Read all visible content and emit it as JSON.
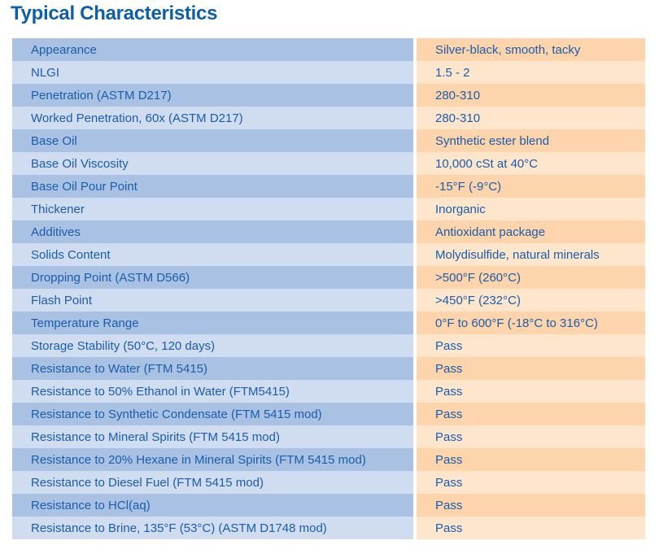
{
  "page": {
    "title": "Typical Characteristics"
  },
  "colors": {
    "title_text": "#0d5ead",
    "cell_text": "#1a5dab",
    "property_row_dark": "#a9c2e3",
    "property_row_light": "#d0dcef",
    "value_row_dark": "#fdd4ab",
    "value_row_light": "#fee6cd",
    "background": "#ffffff"
  },
  "table": {
    "rows": [
      {
        "property": "Appearance",
        "value": "Silver-black, smooth, tacky"
      },
      {
        "property": "NLGI",
        "value": "1.5 - 2"
      },
      {
        "property": "Penetration (ASTM D217)",
        "value": "280-310"
      },
      {
        "property": "Worked Penetration, 60x (ASTM D217)",
        "value": "280-310"
      },
      {
        "property": "Base Oil",
        "value": "Synthetic ester blend"
      },
      {
        "property": "Base Oil Viscosity",
        "value": "10,000 cSt at 40°C"
      },
      {
        "property": "Base Oil Pour Point",
        "value": "-15°F (-9°C)"
      },
      {
        "property": "Thickener",
        "value": "Inorganic"
      },
      {
        "property": "Additives",
        "value": "Antioxidant package"
      },
      {
        "property": "Solids Content",
        "value": "Molydisulfide, natural minerals"
      },
      {
        "property": "Dropping Point (ASTM D566)",
        "value": ">500°F (260°C)"
      },
      {
        "property": "Flash Point",
        "value": ">450°F (232°C)"
      },
      {
        "property": "Temperature Range",
        "value": "0°F to 600°F (-18°C to 316°C)"
      },
      {
        "property": "Storage Stability (50°C, 120 days)",
        "value": "Pass"
      },
      {
        "property": "Resistance to Water (FTM 5415)",
        "value": "Pass"
      },
      {
        "property": "Resistance to 50% Ethanol in Water (FTM5415)",
        "value": "Pass"
      },
      {
        "property": "Resistance to Synthetic Condensate (FTM 5415 mod)",
        "value": "Pass"
      },
      {
        "property": "Resistance to Mineral Spirits (FTM 5415 mod)",
        "value": "Pass"
      },
      {
        "property": "Resistance to 20% Hexane in Mineral Spirits (FTM 5415 mod)",
        "value": "Pass"
      },
      {
        "property": "Resistance to Diesel Fuel (FTM 5415 mod)",
        "value": "Pass"
      },
      {
        "property": "Resistance to HCl(aq)",
        "value": "Pass"
      },
      {
        "property": "Resistance to Brine, 135°F (53°C) (ASTM D1748 mod)",
        "value": "Pass"
      }
    ]
  }
}
